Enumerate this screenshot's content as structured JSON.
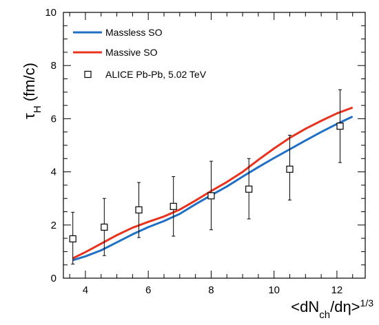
{
  "chart_data": {
    "type": "line",
    "x_label": {
      "main": "<dN",
      "sub1": "ch",
      "mid": "/dη>",
      "sup": "1/3"
    },
    "y_label": {
      "main": "τ",
      "sub": "H",
      "unit": " (fm/c)"
    },
    "xlim": [
      3.3,
      12.9
    ],
    "ylim": [
      0,
      10
    ],
    "x_ticks": [
      4,
      6,
      8,
      10,
      12
    ],
    "y_ticks": [
      0,
      2,
      4,
      6,
      8,
      10
    ],
    "x_ticks_minor_step": 0.5,
    "y_ticks_minor_step": 0.5,
    "grid": false,
    "legend_position": "top-left",
    "series": [
      {
        "name": "Massless SO",
        "kind": "line",
        "color": "#1f6fc5",
        "x": [
          3.6,
          4.0,
          4.5,
          5.0,
          5.5,
          6.0,
          6.5,
          7.0,
          7.5,
          8.0,
          8.5,
          9.0,
          9.5,
          10.0,
          10.5,
          11.0,
          11.5,
          12.0,
          12.5
        ],
        "y": [
          0.68,
          0.82,
          1.05,
          1.35,
          1.65,
          1.92,
          2.15,
          2.42,
          2.78,
          3.12,
          3.45,
          3.82,
          4.18,
          4.52,
          4.85,
          5.18,
          5.5,
          5.8,
          6.08
        ]
      },
      {
        "name": "Massive SO",
        "kind": "line",
        "color": "#e8321d",
        "x": [
          3.6,
          4.0,
          4.5,
          5.0,
          5.5,
          6.0,
          6.5,
          7.0,
          7.5,
          8.0,
          8.5,
          9.0,
          9.5,
          10.0,
          10.5,
          11.0,
          11.5,
          12.0,
          12.5
        ],
        "y": [
          0.75,
          0.98,
          1.3,
          1.62,
          1.9,
          2.12,
          2.32,
          2.58,
          2.92,
          3.28,
          3.62,
          4.0,
          4.45,
          4.88,
          5.28,
          5.62,
          5.92,
          6.2,
          6.42
        ]
      },
      {
        "name": "ALICE Pb-Pb, 5.02 TeV",
        "kind": "points",
        "marker": "open-square",
        "color": "#000000",
        "x": [
          3.6,
          4.6,
          5.7,
          6.8,
          8.0,
          9.2,
          10.5,
          12.1
        ],
        "y": [
          1.48,
          1.92,
          2.57,
          2.7,
          3.1,
          3.35,
          4.1,
          5.72
        ],
        "y_err_low": [
          0.95,
          1.07,
          1.04,
          1.12,
          1.28,
          1.12,
          1.16,
          1.37
        ],
        "y_err_high": [
          1.0,
          1.08,
          1.03,
          1.12,
          1.3,
          1.15,
          1.28,
          1.37
        ]
      }
    ]
  }
}
